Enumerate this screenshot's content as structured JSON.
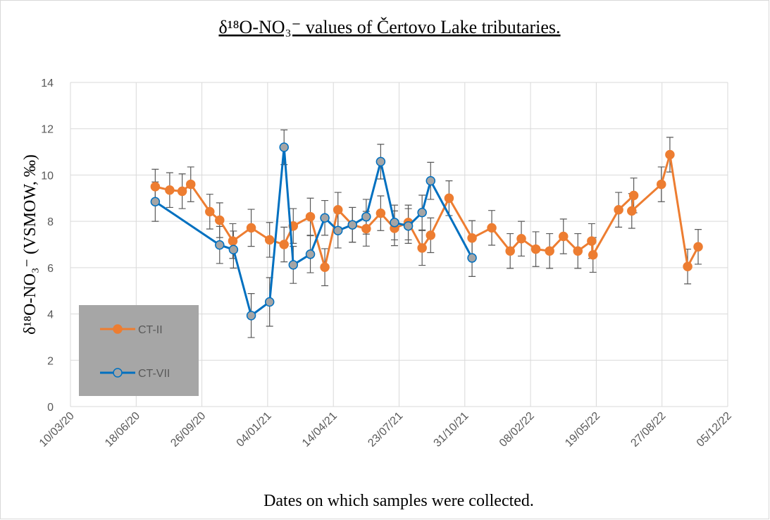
{
  "chart_data": {
    "type": "line",
    "title": "δ¹⁸O-NO₃⁻ values of Čertovo Lake tributaries.",
    "x_label": "Dates on which samples were collected.",
    "y_label": "δ¹⁸O-NO₃⁻ (VSMOW, ‰)",
    "xlim": [
      "2020-03-10",
      "2022-12-05"
    ],
    "xticks": [
      {
        "value": "2020-03-10",
        "label": "10/03/20"
      },
      {
        "value": "2020-06-18",
        "label": "18/06/20"
      },
      {
        "value": "2020-09-26",
        "label": "26/09/20"
      },
      {
        "value": "2021-01-04",
        "label": "04/01/21"
      },
      {
        "value": "2021-04-14",
        "label": "14/04/21"
      },
      {
        "value": "2021-07-23",
        "label": "23/07/21"
      },
      {
        "value": "2021-10-31",
        "label": "31/10/21"
      },
      {
        "value": "2022-02-08",
        "label": "08/02/22"
      },
      {
        "value": "2022-05-19",
        "label": "19/05/22"
      },
      {
        "value": "2022-08-27",
        "label": "27/08/22"
      },
      {
        "value": "2022-12-05",
        "label": "05/12/22"
      }
    ],
    "ylim": [
      0,
      14
    ],
    "yticks": [
      0,
      2,
      4,
      6,
      8,
      10,
      12,
      14
    ],
    "grid": true,
    "legend": "lower left",
    "series": [
      {
        "name": "CT-II",
        "color": "#ED7D31",
        "marker_fill": "#ED7D31",
        "x": [
          "2020-07-17",
          "2020-08-08",
          "2020-08-27",
          "2020-09-09",
          "2020-10-08",
          "2020-10-23",
          "2020-11-12",
          "2020-12-10",
          "2021-01-07",
          "2021-01-29",
          "2021-02-12",
          "2021-03-10",
          "2021-04-01",
          "2021-04-21",
          "2021-05-13",
          "2021-06-03",
          "2021-06-25",
          "2021-07-16",
          "2021-08-06",
          "2021-08-27",
          "2021-09-09",
          "2021-10-07",
          "2021-11-11",
          "2021-12-11",
          "2022-01-08",
          "2022-01-25",
          "2022-02-16",
          "2022-03-09",
          "2022-03-30",
          "2022-04-21",
          "2022-05-12",
          "2022-05-14",
          "2022-06-22",
          "2022-07-15",
          "2022-07-12",
          "2022-08-26",
          "2022-09-08",
          "2022-10-05",
          "2022-10-21"
        ],
        "values": [
          9.5,
          9.35,
          9.3,
          9.6,
          8.42,
          8.05,
          7.15,
          7.72,
          7.2,
          7.0,
          7.8,
          8.2,
          6.02,
          8.5,
          7.85,
          7.68,
          8.35,
          7.7,
          7.95,
          6.85,
          7.4,
          9.0,
          7.28,
          7.72,
          6.72,
          7.25,
          6.8,
          6.72,
          7.35,
          6.72,
          7.15,
          6.55,
          8.5,
          9.12,
          8.45,
          9.6,
          10.88,
          6.05,
          6.9
        ],
        "errors": [
          0.75,
          0.75,
          0.75,
          0.75,
          0.75,
          0.75,
          0.75,
          0.8,
          0.75,
          0.75,
          0.75,
          0.8,
          0.8,
          0.75,
          0.75,
          0.75,
          0.75,
          0.75,
          0.75,
          0.75,
          0.75,
          0.75,
          0.75,
          0.75,
          0.75,
          0.75,
          0.75,
          0.75,
          0.75,
          0.75,
          0.75,
          0.75,
          0.75,
          0.75,
          0.75,
          0.75,
          0.75,
          0.75,
          0.75
        ]
      },
      {
        "name": "CT-VII",
        "color": "#0070C0",
        "marker_fill": "#A5A5A5",
        "x": [
          "2020-07-17",
          "2020-10-23",
          "2020-11-13",
          "2020-12-10",
          "2021-01-07",
          "2021-01-29",
          "2021-02-12",
          "2021-03-10",
          "2021-04-01",
          "2021-04-21",
          "2021-05-13",
          "2021-06-03",
          "2021-06-25",
          "2021-07-16",
          "2021-08-06",
          "2021-08-27",
          "2021-09-09",
          "2021-11-11"
        ],
        "values": [
          8.85,
          6.98,
          6.78,
          3.93,
          4.52,
          11.2,
          6.12,
          6.58,
          8.15,
          7.6,
          7.85,
          8.2,
          10.58,
          7.95,
          7.8,
          8.38,
          9.75,
          6.42
        ],
        "errors": [
          0.85,
          0.8,
          0.8,
          0.95,
          1.05,
          0.75,
          0.8,
          0.8,
          0.75,
          0.75,
          0.75,
          0.75,
          0.75,
          0.75,
          0.75,
          0.75,
          0.8,
          0.8
        ]
      }
    ]
  }
}
